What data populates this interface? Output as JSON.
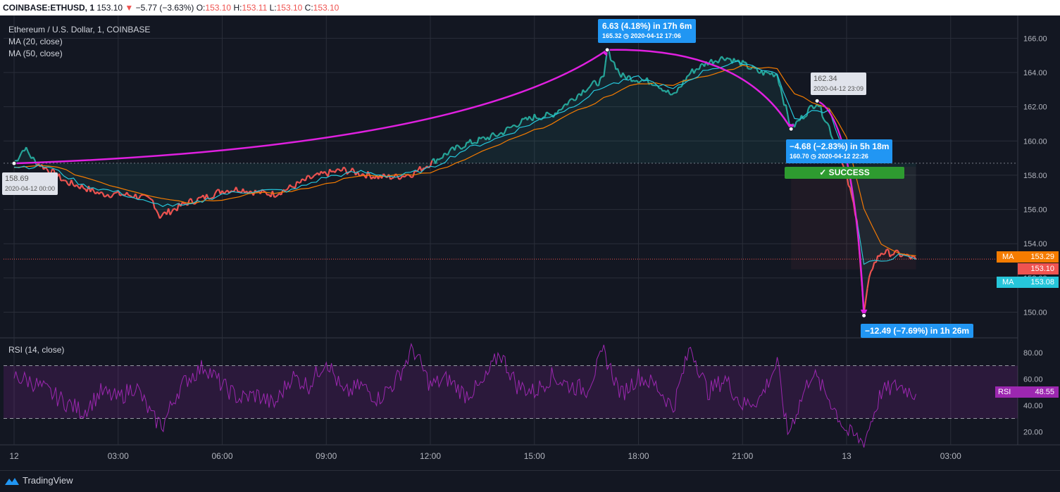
{
  "header": {
    "symbol": "COINBASE:ETHUSD, 1",
    "price": "153.10",
    "arrow": "▼",
    "change": "−5.77 (−3.63%)",
    "o_label": "O:",
    "o_val": "153.10",
    "h_label": "H:",
    "h_val": "153.11",
    "l_label": "L:",
    "l_val": "153.10",
    "c_label": "C:",
    "c_val": "153.10"
  },
  "legend": {
    "title": "Ethereum / U.S. Dollar, 1, COINBASE",
    "ma20": "MA (20, close)",
    "ma50": "MA (50, close)"
  },
  "rsi_label": "RSI (14, close)",
  "annotations": {
    "up_move": {
      "line1": "6.63 (4.18%) in 17h 6m",
      "line2": "165.32 ◷ 2020-04-12  17:06"
    },
    "peak2": {
      "line1": "162.34",
      "line2": "2020-04-12 23:09"
    },
    "down_move": {
      "line1": "−4.68 (−2.83%) in 5h 18m",
      "line2": "160.70 ◷ 2020-04-12  22:26"
    },
    "success": "✓ SUCCESS",
    "crash": {
      "line1": "−12.49 (−7.69%) in 1h 26m"
    },
    "start": {
      "line1": "158.69",
      "line2": "2020-04-12 00:00"
    }
  },
  "axis_tags": {
    "ma_orange_label": "MA",
    "ma_orange_val": "153.29",
    "price_val": "153.10",
    "ma_teal_label": "MA",
    "ma_teal_val": "153.08",
    "rsi_label": "RSI",
    "rsi_val": "48.55"
  },
  "footer": {
    "brand": "TradingView"
  },
  "colors": {
    "background": "#131722",
    "up": "#26a69a",
    "down": "#ef5350",
    "ma20": "#26c6da",
    "ma50": "#f57c00",
    "rsi": "#9c27b0",
    "arrow": "#e020e0"
  },
  "chart_data": {
    "type": "line",
    "x_ticks": [
      "12",
      "03:00",
      "06:00",
      "09:00",
      "12:00",
      "15:00",
      "18:00",
      "21:00",
      "13",
      "03:00"
    ],
    "y_ticks": [
      "150.00",
      "152.00",
      "154.00",
      "156.00",
      "158.00",
      "160.00",
      "162.00",
      "164.00",
      "166.00"
    ],
    "ylim": [
      148.5,
      167
    ],
    "rsi_ticks": [
      "20.00",
      "40.00",
      "60.00",
      "80.00"
    ],
    "rsi_ylim": [
      10,
      90
    ],
    "rsi_bands": [
      30,
      70
    ],
    "series": [
      {
        "name": "ETHUSD",
        "points": [
          [
            0,
            158.7
          ],
          [
            0.3,
            159.6
          ],
          [
            0.6,
            158.8
          ],
          [
            1,
            158.3
          ],
          [
            1.5,
            157.6
          ],
          [
            2,
            157.3
          ],
          [
            2.5,
            156.9
          ],
          [
            3,
            156.9
          ],
          [
            3.5,
            156.8
          ],
          [
            4,
            156.5
          ],
          [
            4.2,
            155.6
          ],
          [
            4.5,
            155.9
          ],
          [
            5,
            156.4
          ],
          [
            5.5,
            156.7
          ],
          [
            6,
            157.1
          ],
          [
            6.5,
            157.2
          ],
          [
            7,
            157.0
          ],
          [
            7.5,
            156.9
          ],
          [
            8,
            157.3
          ],
          [
            8.5,
            157.8
          ],
          [
            9,
            158.1
          ],
          [
            9.5,
            158.3
          ],
          [
            10,
            158.1
          ],
          [
            10.5,
            157.9
          ],
          [
            11,
            157.9
          ],
          [
            11.5,
            158.1
          ],
          [
            12,
            158.7
          ],
          [
            12.5,
            159.3
          ],
          [
            13,
            159.8
          ],
          [
            13.5,
            160.1
          ],
          [
            14,
            160.4
          ],
          [
            14.5,
            161.0
          ],
          [
            15,
            161.4
          ],
          [
            15.5,
            161.5
          ],
          [
            16,
            162.3
          ],
          [
            16.5,
            163.1
          ],
          [
            17,
            163.6
          ],
          [
            17.1,
            165.3
          ],
          [
            17.5,
            163.8
          ],
          [
            18,
            163.6
          ],
          [
            18.5,
            163.4
          ],
          [
            19,
            162.6
          ],
          [
            19.5,
            164.0
          ],
          [
            20,
            164.6
          ],
          [
            20.5,
            164.9
          ],
          [
            21,
            164.5
          ],
          [
            21.5,
            164.0
          ],
          [
            22,
            163.9
          ],
          [
            22.4,
            160.7
          ],
          [
            23,
            162.0
          ],
          [
            23.15,
            162.3
          ],
          [
            23.5,
            160.8
          ],
          [
            24,
            157.9
          ],
          [
            24.3,
            155.5
          ],
          [
            24.5,
            149.9
          ],
          [
            24.7,
            152.5
          ],
          [
            25,
            153.5
          ],
          [
            25.5,
            153.4
          ],
          [
            26,
            153.1
          ]
        ]
      },
      {
        "name": "MA (20, close)",
        "points": [
          [
            0,
            158.5
          ],
          [
            1,
            158.5
          ],
          [
            2,
            157.4
          ],
          [
            3,
            157.0
          ],
          [
            4,
            156.3
          ],
          [
            5,
            156.2
          ],
          [
            6,
            156.9
          ],
          [
            7,
            157.1
          ],
          [
            8,
            157.1
          ],
          [
            9,
            157.9
          ],
          [
            10,
            158.2
          ],
          [
            11,
            157.9
          ],
          [
            12,
            158.4
          ],
          [
            13,
            159.5
          ],
          [
            14,
            160.2
          ],
          [
            15,
            161.1
          ],
          [
            16,
            161.9
          ],
          [
            17,
            163.2
          ],
          [
            18,
            163.7
          ],
          [
            19,
            163.0
          ],
          [
            20,
            164.2
          ],
          [
            21,
            164.6
          ],
          [
            22,
            163.9
          ],
          [
            22.5,
            161.2
          ],
          [
            23,
            161.7
          ],
          [
            23.5,
            161.8
          ],
          [
            24,
            159.0
          ],
          [
            24.5,
            152.8
          ],
          [
            25,
            153.0
          ],
          [
            25.5,
            153.3
          ],
          [
            26,
            153.08
          ]
        ]
      },
      {
        "name": "MA (50, close)",
        "points": [
          [
            0,
            158.4
          ],
          [
            1,
            158.6
          ],
          [
            2,
            157.9
          ],
          [
            3,
            157.3
          ],
          [
            4,
            156.8
          ],
          [
            5,
            156.4
          ],
          [
            6,
            156.6
          ],
          [
            7,
            157.0
          ],
          [
            8,
            157.0
          ],
          [
            9,
            157.5
          ],
          [
            10,
            158.0
          ],
          [
            11,
            158.0
          ],
          [
            12,
            158.1
          ],
          [
            13,
            158.9
          ],
          [
            14,
            159.8
          ],
          [
            15,
            160.6
          ],
          [
            16,
            161.5
          ],
          [
            17,
            162.5
          ],
          [
            18,
            163.4
          ],
          [
            19,
            163.3
          ],
          [
            20,
            163.8
          ],
          [
            21,
            164.4
          ],
          [
            22,
            164.2
          ],
          [
            22.5,
            162.8
          ],
          [
            23,
            162.3
          ],
          [
            23.5,
            161.9
          ],
          [
            24,
            160.2
          ],
          [
            24.5,
            156.0
          ],
          [
            25,
            154.0
          ],
          [
            25.5,
            153.5
          ],
          [
            26,
            153.29
          ]
        ]
      },
      {
        "name": "RSI (14, close)",
        "points": [
          [
            0,
            62
          ],
          [
            0.5,
            58
          ],
          [
            1,
            50
          ],
          [
            1.5,
            42
          ],
          [
            2,
            35
          ],
          [
            2.5,
            50
          ],
          [
            3,
            45
          ],
          [
            3.5,
            55
          ],
          [
            4,
            30
          ],
          [
            4.3,
            25
          ],
          [
            4.7,
            50
          ],
          [
            5,
            60
          ],
          [
            5.5,
            70
          ],
          [
            6,
            55
          ],
          [
            6.5,
            45
          ],
          [
            7,
            48
          ],
          [
            7.5,
            40
          ],
          [
            8,
            62
          ],
          [
            8.5,
            55
          ],
          [
            9,
            75
          ],
          [
            9.5,
            48
          ],
          [
            10,
            55
          ],
          [
            10.5,
            45
          ],
          [
            11,
            58
          ],
          [
            11.5,
            83
          ],
          [
            12,
            55
          ],
          [
            12.5,
            60
          ],
          [
            13,
            48
          ],
          [
            13.5,
            55
          ],
          [
            14,
            80
          ],
          [
            14.5,
            55
          ],
          [
            15,
            50
          ],
          [
            15.5,
            62
          ],
          [
            16,
            55
          ],
          [
            16.5,
            52
          ],
          [
            17,
            80
          ],
          [
            17.5,
            48
          ],
          [
            18,
            62
          ],
          [
            18.5,
            55
          ],
          [
            19,
            38
          ],
          [
            19.5,
            85
          ],
          [
            20,
            50
          ],
          [
            20.5,
            60
          ],
          [
            21,
            40
          ],
          [
            21.5,
            45
          ],
          [
            22,
            72
          ],
          [
            22.3,
            18
          ],
          [
            22.7,
            45
          ],
          [
            23,
            65
          ],
          [
            23.5,
            45
          ],
          [
            24,
            20
          ],
          [
            24.5,
            12
          ],
          [
            25,
            50
          ],
          [
            25.5,
            55
          ],
          [
            26,
            48.55
          ]
        ]
      }
    ],
    "x_unit": "hours since 2020-04-12 00:00"
  }
}
